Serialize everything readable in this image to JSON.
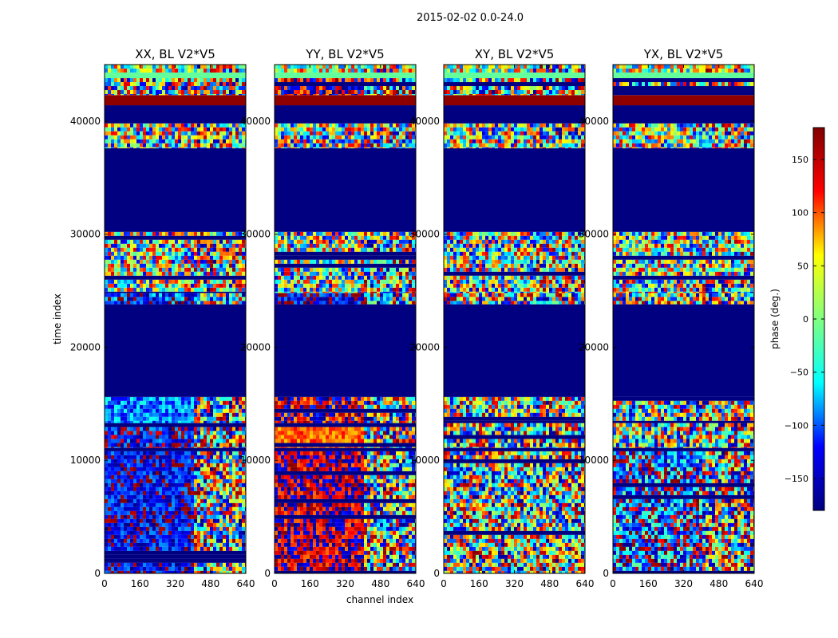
{
  "figure": {
    "suptitle": "2015-02-02 0.0-24.0",
    "xlabel": "channel index",
    "ylabel": "time index"
  },
  "colorbar": {
    "label": "phase (deg.)",
    "range": [
      -180,
      180
    ],
    "ticks": [
      -150,
      -100,
      -50,
      0,
      50,
      100,
      150
    ],
    "tick_labels": [
      "−150",
      "−100",
      "−50",
      "0",
      "50",
      "100",
      "150"
    ],
    "colormap": "jet",
    "jet_stops": [
      "#000080",
      "#0000ff",
      "#00ffff",
      "#80ff80",
      "#ffff00",
      "#ff0000",
      "#800000"
    ]
  },
  "chart_data": [
    {
      "type": "heatmap",
      "title": "XX, BL V2*V5",
      "xlabel": "channel index",
      "ylabel": "time index",
      "xlim": [
        0,
        640
      ],
      "ylim": [
        0,
        45000
      ],
      "xticks": [
        0,
        160,
        320,
        480,
        640
      ],
      "yticks": [
        0,
        10000,
        20000,
        30000,
        40000
      ],
      "color": "phase (deg.)",
      "bands": [
        {
          "t": [
            0,
            10800
          ],
          "value": "noisy",
          "bias": -140,
          "spread": 60
        },
        {
          "t": [
            10800,
            11100
          ],
          "value": "flagged",
          "bias": -180
        },
        {
          "t": [
            11100,
            13300
          ],
          "value": "noisy",
          "bias": -150,
          "spread": 80
        },
        {
          "t": [
            13300,
            15600
          ],
          "value": "noisy",
          "bias": -90,
          "spread": 60
        },
        {
          "t": [
            15600,
            23800
          ],
          "value": "flagged",
          "bias": -180
        },
        {
          "t": [
            23800,
            24800
          ],
          "value": "noisy",
          "bias": -120,
          "spread": 80
        },
        {
          "t": [
            24800,
            30200
          ],
          "value": "noisy",
          "bias": 0,
          "spread": 150
        },
        {
          "t": [
            30200,
            37600
          ],
          "value": "flagged",
          "bias": -180
        },
        {
          "t": [
            37600,
            39800
          ],
          "value": "noisy",
          "bias": 0,
          "spread": 150
        },
        {
          "t": [
            39800,
            41400
          ],
          "value": "flagged",
          "bias": -180
        },
        {
          "t": [
            41400,
            42300
          ],
          "value": "wrapped",
          "bias": 175
        },
        {
          "t": [
            42300,
            43800
          ],
          "value": "noisy",
          "bias": 0,
          "spread": 170
        },
        {
          "t": [
            43800,
            44300
          ],
          "value": "constant",
          "bias": -10
        },
        {
          "t": [
            44300,
            45000
          ],
          "value": "noisy",
          "bias": 20,
          "spread": 120
        }
      ]
    },
    {
      "type": "heatmap",
      "title": "YY, BL V2*V5",
      "xlabel": "channel index",
      "ylabel": "time index",
      "xlim": [
        0,
        640
      ],
      "ylim": [
        0,
        45000
      ],
      "xticks": [
        0,
        160,
        320,
        480,
        640
      ],
      "yticks": [
        0,
        10000,
        20000,
        30000,
        40000
      ],
      "color": "phase (deg.)",
      "bands": [
        {
          "t": [
            0,
            10800
          ],
          "value": "noisy",
          "bias": 165,
          "spread": 70
        },
        {
          "t": [
            10800,
            11100
          ],
          "value": "flagged",
          "bias": -180
        },
        {
          "t": [
            11100,
            13300
          ],
          "value": "noisy",
          "bias": 100,
          "spread": 40
        },
        {
          "t": [
            13300,
            15600
          ],
          "value": "noisy",
          "bias": 160,
          "spread": 90
        },
        {
          "t": [
            15600,
            23800
          ],
          "value": "flagged",
          "bias": -180
        },
        {
          "t": [
            23800,
            24800
          ],
          "value": "noisy",
          "bias": -140,
          "spread": 60
        },
        {
          "t": [
            24800,
            30200
          ],
          "value": "noisy",
          "bias": 0,
          "spread": 150
        },
        {
          "t": [
            30200,
            37600
          ],
          "value": "flagged",
          "bias": -180
        },
        {
          "t": [
            37600,
            39800
          ],
          "value": "noisy",
          "bias": 0,
          "spread": 150
        },
        {
          "t": [
            39800,
            41400
          ],
          "value": "flagged",
          "bias": -180
        },
        {
          "t": [
            41400,
            42300
          ],
          "value": "wrapped",
          "bias": 175
        },
        {
          "t": [
            42300,
            43800
          ],
          "value": "noisy",
          "bias": 160,
          "spread": 90
        },
        {
          "t": [
            43800,
            44300
          ],
          "value": "constant",
          "bias": -10
        },
        {
          "t": [
            44300,
            45000
          ],
          "value": "noisy",
          "bias": 20,
          "spread": 120
        }
      ]
    },
    {
      "type": "heatmap",
      "title": "XY, BL V2*V5",
      "xlabel": "channel index",
      "ylabel": "time index",
      "xlim": [
        0,
        640
      ],
      "ylim": [
        0,
        45000
      ],
      "xticks": [
        0,
        160,
        320,
        480,
        640
      ],
      "yticks": [
        0,
        10000,
        20000,
        30000,
        40000
      ],
      "color": "phase (deg.)",
      "bands": [
        {
          "t": [
            0,
            10800
          ],
          "value": "noisy",
          "bias": 0,
          "spread": 180
        },
        {
          "t": [
            10800,
            11100
          ],
          "value": "flagged",
          "bias": -180
        },
        {
          "t": [
            11100,
            13300
          ],
          "value": "noisy",
          "bias": 0,
          "spread": 170
        },
        {
          "t": [
            13300,
            15600
          ],
          "value": "noisy",
          "bias": 0,
          "spread": 170
        },
        {
          "t": [
            15600,
            23800
          ],
          "value": "flagged",
          "bias": -180
        },
        {
          "t": [
            23800,
            24800
          ],
          "value": "noisy",
          "bias": 0,
          "spread": 170
        },
        {
          "t": [
            24800,
            30200
          ],
          "value": "noisy",
          "bias": 0,
          "spread": 150
        },
        {
          "t": [
            30200,
            37600
          ],
          "value": "flagged",
          "bias": -180
        },
        {
          "t": [
            37600,
            39800
          ],
          "value": "noisy",
          "bias": 0,
          "spread": 150
        },
        {
          "t": [
            39800,
            41400
          ],
          "value": "flagged",
          "bias": -180
        },
        {
          "t": [
            41400,
            42300
          ],
          "value": "wrapped",
          "bias": 175
        },
        {
          "t": [
            42300,
            43800
          ],
          "value": "noisy",
          "bias": 0,
          "spread": 170
        },
        {
          "t": [
            43800,
            44300
          ],
          "value": "constant",
          "bias": -10
        },
        {
          "t": [
            44300,
            45000
          ],
          "value": "noisy",
          "bias": 20,
          "spread": 120
        }
      ]
    },
    {
      "type": "heatmap",
      "title": "YX, BL V2*V5",
      "xlabel": "channel index",
      "ylabel": "time index",
      "xlim": [
        0,
        640
      ],
      "ylim": [
        0,
        45000
      ],
      "xticks": [
        0,
        160,
        320,
        480,
        640
      ],
      "yticks": [
        0,
        10000,
        20000,
        30000,
        40000
      ],
      "color": "phase (deg.)",
      "bands": [
        {
          "t": [
            0,
            10800
          ],
          "value": "noisy",
          "bias": -120,
          "spread": 120
        },
        {
          "t": [
            10800,
            11100
          ],
          "value": "flagged",
          "bias": -180
        },
        {
          "t": [
            11100,
            13300
          ],
          "value": "noisy",
          "bias": 0,
          "spread": 170
        },
        {
          "t": [
            13300,
            15600
          ],
          "value": "noisy",
          "bias": 0,
          "spread": 170
        },
        {
          "t": [
            15600,
            23800
          ],
          "value": "flagged",
          "bias": -180
        },
        {
          "t": [
            23800,
            24800
          ],
          "value": "noisy",
          "bias": 0,
          "spread": 170
        },
        {
          "t": [
            24800,
            30200
          ],
          "value": "noisy",
          "bias": 0,
          "spread": 150
        },
        {
          "t": [
            30200,
            37600
          ],
          "value": "flagged",
          "bias": -180
        },
        {
          "t": [
            37600,
            39800
          ],
          "value": "noisy",
          "bias": 0,
          "spread": 150
        },
        {
          "t": [
            39800,
            41400
          ],
          "value": "flagged",
          "bias": -180
        },
        {
          "t": [
            41400,
            42300
          ],
          "value": "wrapped",
          "bias": 175
        },
        {
          "t": [
            42300,
            43800
          ],
          "value": "noisy",
          "bias": 0,
          "spread": 170
        },
        {
          "t": [
            43800,
            44300
          ],
          "value": "constant",
          "bias": -10
        },
        {
          "t": [
            44300,
            45000
          ],
          "value": "noisy",
          "bias": 20,
          "spread": 120
        }
      ]
    }
  ]
}
